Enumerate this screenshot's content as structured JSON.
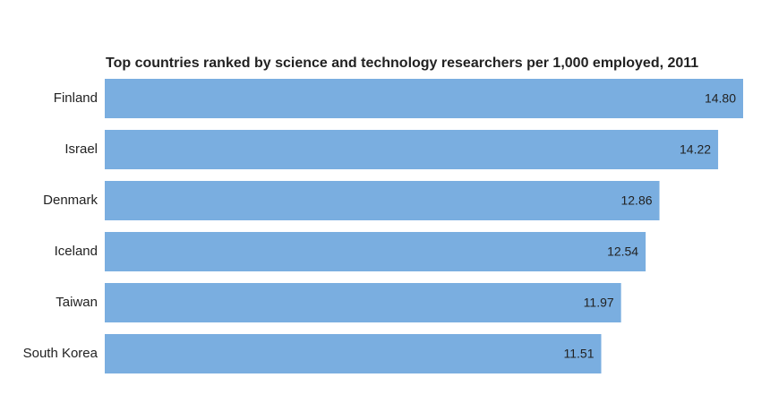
{
  "chart_data": {
    "type": "bar",
    "orientation": "horizontal",
    "title": "Top countries ranked by science and technology researchers per 1,000 employed, 2011",
    "categories": [
      "Finland",
      "Israel",
      "Denmark",
      "Iceland",
      "Taiwan",
      "South Korea"
    ],
    "values": [
      14.8,
      14.22,
      12.86,
      12.54,
      11.97,
      11.51
    ],
    "value_labels": [
      "14.80",
      "14.22",
      "12.86",
      "12.54",
      "11.97",
      "11.51"
    ],
    "color": "#7aaee0"
  }
}
